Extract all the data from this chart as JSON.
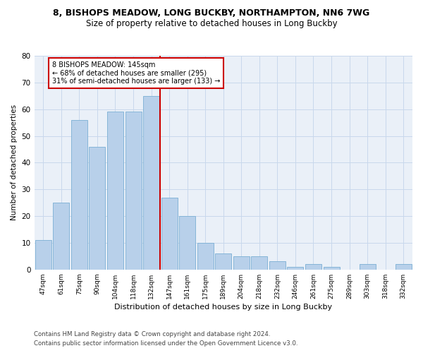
{
  "title1": "8, BISHOPS MEADOW, LONG BUCKBY, NORTHAMPTON, NN6 7WG",
  "title2": "Size of property relative to detached houses in Long Buckby",
  "xlabel": "Distribution of detached houses by size in Long Buckby",
  "ylabel": "Number of detached properties",
  "footer1": "Contains HM Land Registry data © Crown copyright and database right 2024.",
  "footer2": "Contains public sector information licensed under the Open Government Licence v3.0.",
  "categories": [
    "47sqm",
    "61sqm",
    "75sqm",
    "90sqm",
    "104sqm",
    "118sqm",
    "132sqm",
    "147sqm",
    "161sqm",
    "175sqm",
    "189sqm",
    "204sqm",
    "218sqm",
    "232sqm",
    "246sqm",
    "261sqm",
    "275sqm",
    "289sqm",
    "303sqm",
    "318sqm",
    "332sqm"
  ],
  "values": [
    11,
    25,
    56,
    46,
    59,
    59,
    65,
    27,
    20,
    10,
    6,
    5,
    5,
    3,
    1,
    2,
    1,
    0,
    2,
    0,
    2
  ],
  "bar_color": "#b8d0ea",
  "bar_edge_color": "#7aafd4",
  "grid_color": "#c8d8ec",
  "vline_color": "#cc0000",
  "annotation_line1": "8 BISHOPS MEADOW: 145sqm",
  "annotation_line2": "← 68% of detached houses are smaller (295)",
  "annotation_line3": "31% of semi-detached houses are larger (133) →",
  "ylim": [
    0,
    80
  ],
  "yticks": [
    0,
    10,
    20,
    30,
    40,
    50,
    60,
    70,
    80
  ],
  "background_color": "#eaf0f8",
  "title1_fontsize": 9,
  "title2_fontsize": 8.5
}
